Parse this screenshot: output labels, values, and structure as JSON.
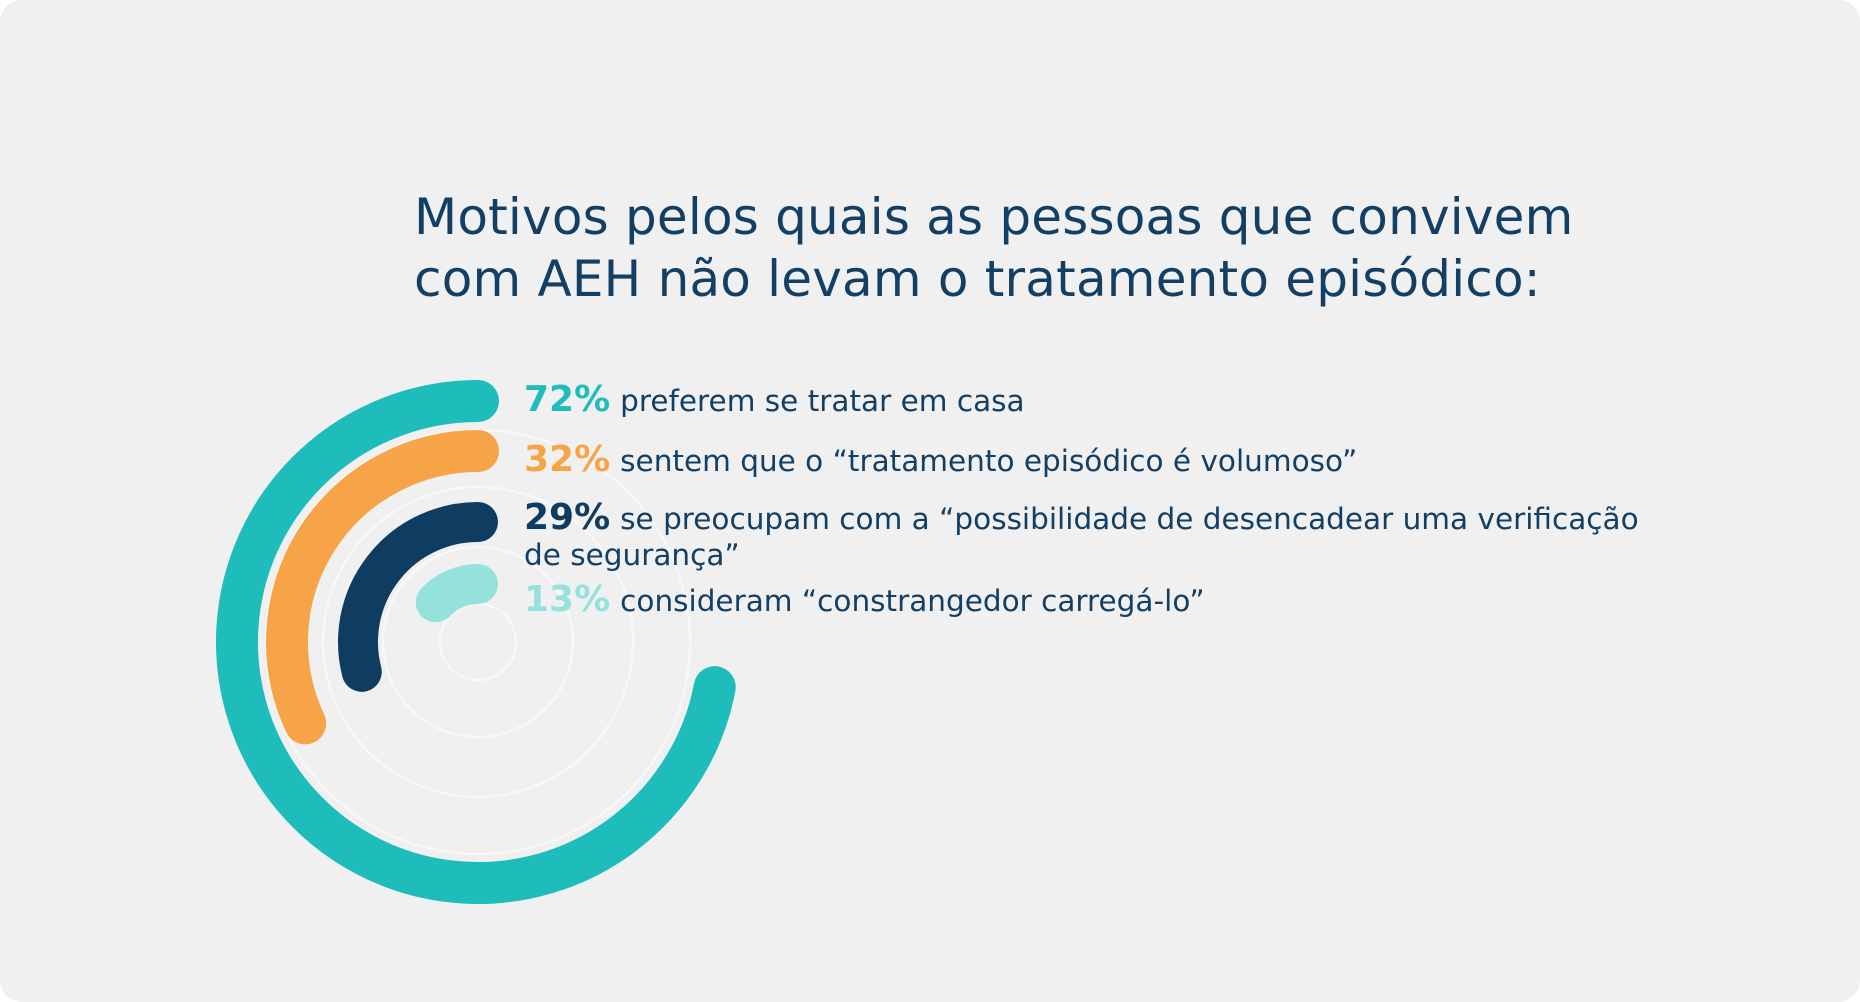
{
  "title": {
    "line1": "Motivos pelos quais as pessoas que convivem",
    "line2": "com AEH não levam o tratamento episódico:"
  },
  "chart_data": {
    "type": "radial-bar",
    "unit": "%",
    "max": 100,
    "series": [
      {
        "label": "72%",
        "value": 72,
        "text": "preferem se tratar em casa",
        "color": "#1fbcbc"
      },
      {
        "label": "32%",
        "value": 32,
        "text": "sentem que o “tratamento episódico é volumoso”",
        "color": "#f7a347"
      },
      {
        "label": "29%",
        "value": 29,
        "text": "se preocupam com a “possibilidade de desencadear uma verificação de segurança”",
        "color": "#0f3d61"
      },
      {
        "label": "13%",
        "value": 13,
        "text": "consideram “constrangedor carregá-lo”",
        "color": "#95e2dc"
      }
    ]
  },
  "colors": {
    "background": "#f0f0f0",
    "text": "#123f63"
  }
}
